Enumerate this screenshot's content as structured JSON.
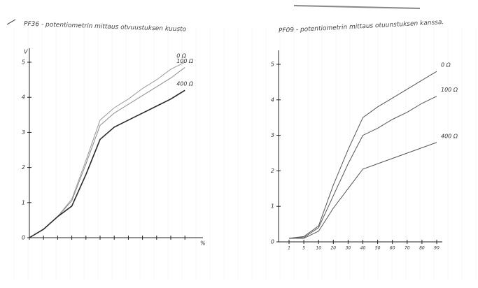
{
  "chart_data": [
    {
      "type": "line",
      "title": "PF36 - potentiometrin mittaus otvuustuksen kuusto",
      "y_label": "V",
      "x_label": "%",
      "categories": [
        null,
        null,
        null,
        null,
        null,
        null,
        null,
        null,
        null,
        null,
        null,
        null
      ],
      "ylim": [
        0,
        5
      ],
      "yticks": [
        0,
        1,
        2,
        3,
        4,
        5
      ],
      "series": [
        {
          "name": "0 Ω",
          "color": "#9a9a9a",
          "values": [
            0,
            0.24,
            0.6,
            1.1,
            2.2,
            3.35,
            3.7,
            3.95,
            4.25,
            4.5,
            4.8,
            5.0
          ]
        },
        {
          "name": "100 Ω",
          "color": "#8a8a8a",
          "values": [
            0,
            0.24,
            0.6,
            1.05,
            2.1,
            3.2,
            3.55,
            3.8,
            4.05,
            4.3,
            4.55,
            4.85
          ]
        },
        {
          "name": "400 Ω",
          "color": "#2a2a2a",
          "values": [
            0,
            0.24,
            0.6,
            0.9,
            1.8,
            2.8,
            3.15,
            3.35,
            3.55,
            3.75,
            3.95,
            4.2
          ]
        }
      ]
    },
    {
      "type": "line",
      "title": "PF09 - potentiometrin mittaus otuunstuksen kanssa.",
      "categories": [
        "1",
        "5",
        "10",
        "20",
        "30",
        "40",
        "50",
        "60",
        "70",
        "80",
        "90"
      ],
      "ylim": [
        0,
        5
      ],
      "yticks": [
        0,
        1,
        2,
        3,
        4,
        5
      ],
      "series": [
        {
          "name": "0 Ω",
          "color": "#555555",
          "values": [
            0.1,
            0.15,
            0.45,
            1.6,
            2.6,
            3.5,
            3.8,
            4.05,
            4.3,
            4.55,
            4.8
          ]
        },
        {
          "name": "100 Ω",
          "color": "#555555",
          "values": [
            0.1,
            0.12,
            0.4,
            1.3,
            2.2,
            3.0,
            3.2,
            3.45,
            3.65,
            3.9,
            4.1
          ]
        },
        {
          "name": "400 Ω",
          "color": "#555555",
          "values": [
            0.1,
            0.1,
            0.3,
            0.95,
            1.5,
            2.05,
            2.2,
            2.35,
            2.5,
            2.65,
            2.8
          ]
        }
      ]
    }
  ]
}
